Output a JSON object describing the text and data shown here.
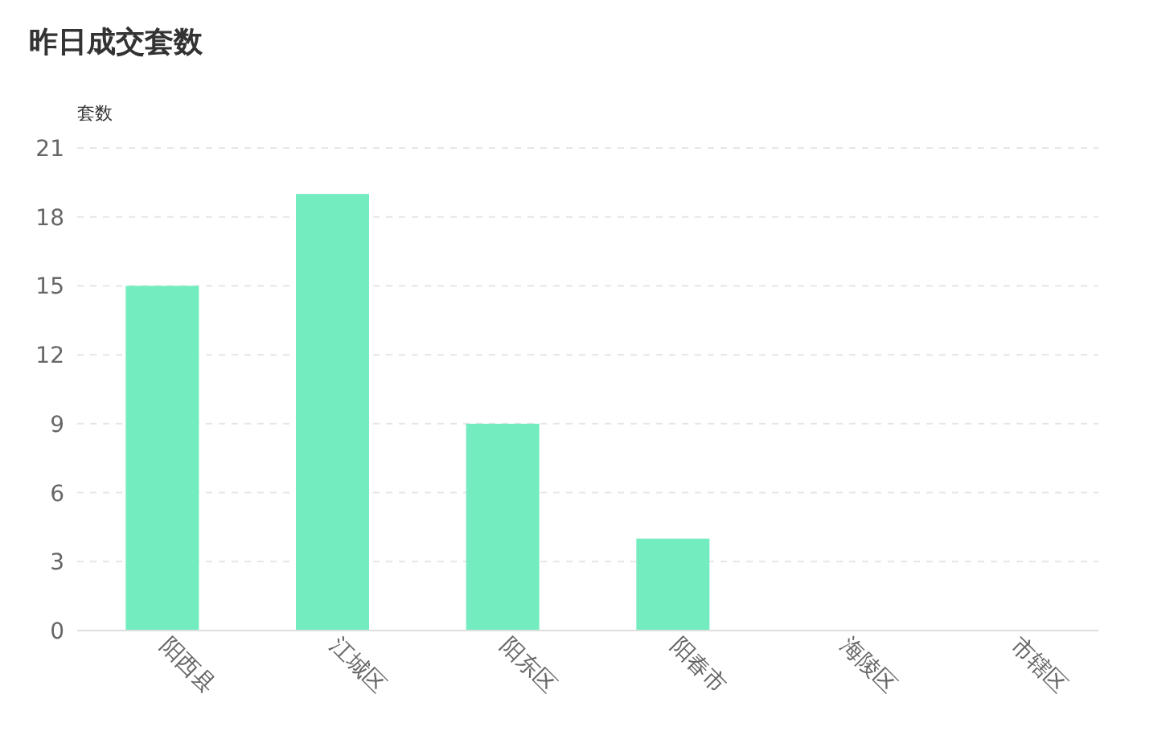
{
  "chart_data": {
    "type": "bar",
    "title": "昨日成交套数",
    "ylabel": "套数",
    "categories": [
      "阳西县",
      "江城区",
      "阳东区",
      "阳春市",
      "海陵区",
      "市辖区"
    ],
    "values": [
      15,
      19,
      9,
      4,
      0,
      0
    ],
    "color": "#73edbf",
    "ylim": [
      0,
      21
    ],
    "yticks": [
      0,
      3,
      6,
      9,
      12,
      15,
      18,
      21
    ],
    "grid": "y"
  }
}
